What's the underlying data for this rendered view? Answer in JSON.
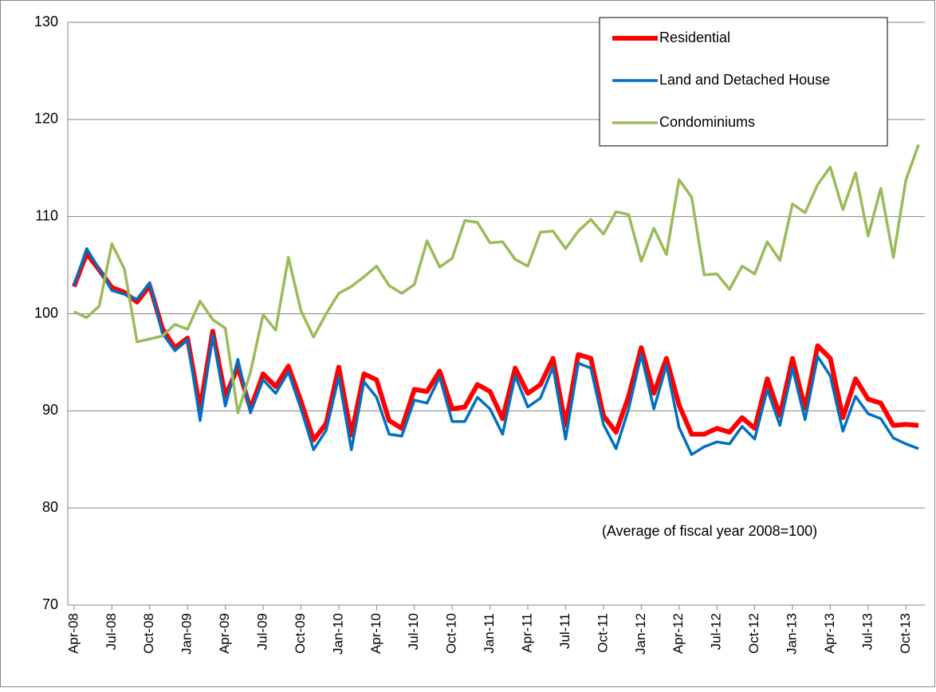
{
  "chart_data": {
    "type": "line",
    "categories": [
      "Apr-08",
      null,
      null,
      "Jul-08",
      null,
      null,
      "Oct-08",
      null,
      null,
      "Jan-09",
      null,
      null,
      "Apr-09",
      null,
      null,
      "Jul-09",
      null,
      null,
      "Oct-09",
      null,
      null,
      "Jan-10",
      null,
      null,
      "Apr-10",
      null,
      null,
      "Jul-10",
      null,
      null,
      "Oct-10",
      null,
      null,
      "Jan-11",
      null,
      null,
      "Apr-11",
      null,
      null,
      "Jul-11",
      null,
      null,
      "Oct-11",
      null,
      null,
      "Jan-12",
      null,
      null,
      "Apr-12",
      null,
      null,
      "Jul-12",
      null,
      null,
      "Oct-12",
      null,
      null,
      "Jan-13",
      null,
      null,
      "Apr-13",
      null,
      null,
      "Jul-13",
      null,
      null,
      "Oct-13",
      null
    ],
    "series": [
      {
        "name": "Residential",
        "color": "#ff0000",
        "values": [
          102.8,
          106.2,
          104.5,
          102.7,
          102.2,
          101.2,
          102.9,
          98.5,
          96.5,
          97.5,
          90.2,
          98.2,
          91.5,
          94.5,
          90.2,
          93.8,
          92.5,
          94.6,
          91.0,
          87.0,
          88.7,
          94.5,
          87.5,
          93.8,
          93.2,
          89.0,
          88.2,
          92.2,
          92.0,
          94.1,
          90.2,
          90.4,
          92.7,
          92.0,
          89.2,
          94.4,
          91.8,
          92.7,
          95.4,
          88.5,
          95.8,
          95.4,
          89.5,
          87.8,
          91.5,
          96.5,
          91.8,
          95.4,
          90.6,
          87.6,
          87.6,
          88.2,
          87.8,
          89.3,
          88.2,
          93.3,
          89.5,
          95.4,
          90.2,
          96.7,
          95.4,
          89.3,
          93.3,
          91.2,
          90.8,
          88.5,
          88.6,
          88.5
        ]
      },
      {
        "name": "Land and Detached House",
        "color": "#0070c0",
        "values": [
          102.9,
          106.7,
          104.6,
          102.4,
          102.0,
          101.5,
          103.2,
          98.0,
          96.2,
          97.3,
          89.0,
          97.8,
          90.5,
          95.3,
          89.8,
          93.2,
          91.8,
          94.0,
          90.2,
          86.0,
          88.0,
          93.5,
          86.0,
          93.0,
          91.4,
          87.6,
          87.4,
          91.1,
          90.8,
          93.5,
          88.9,
          88.9,
          91.4,
          90.2,
          87.6,
          93.6,
          90.4,
          91.3,
          94.5,
          87.1,
          94.9,
          94.4,
          88.6,
          86.1,
          90.2,
          95.8,
          90.2,
          94.7,
          88.3,
          85.5,
          86.3,
          86.8,
          86.6,
          88.4,
          87.1,
          92.2,
          88.5,
          94.4,
          89.1,
          95.6,
          93.6,
          87.9,
          91.5,
          89.7,
          89.2,
          87.2,
          86.6,
          86.1
        ]
      },
      {
        "name": "Condominiums",
        "color": "#9bbb59",
        "values": [
          100.2,
          99.6,
          100.8,
          107.2,
          104.6,
          97.1,
          97.4,
          97.7,
          98.9,
          98.4,
          101.3,
          99.4,
          98.5,
          89.8,
          94.0,
          99.9,
          98.3,
          105.8,
          100.3,
          97.6,
          100.0,
          102.1,
          102.8,
          103.8,
          104.9,
          102.9,
          102.1,
          103.0,
          107.5,
          104.8,
          105.7,
          109.6,
          109.4,
          107.3,
          107.4,
          105.6,
          104.9,
          108.4,
          108.5,
          106.7,
          108.5,
          109.7,
          108.2,
          110.5,
          110.2,
          105.4,
          108.8,
          106.1,
          113.8,
          112.0,
          104.0,
          104.1,
          102.5,
          104.9,
          104.1,
          107.4,
          105.5,
          111.3,
          110.4,
          113.3,
          115.1,
          110.7,
          114.5,
          108.0,
          112.9,
          105.8,
          113.8,
          117.4
        ]
      }
    ],
    "ylim": [
      70,
      130
    ],
    "yticks": [
      70,
      80,
      90,
      100,
      110,
      120,
      130
    ],
    "grid": true,
    "annotation": "(Average of fiscal year 2008=100)",
    "legend": "upper right"
  }
}
